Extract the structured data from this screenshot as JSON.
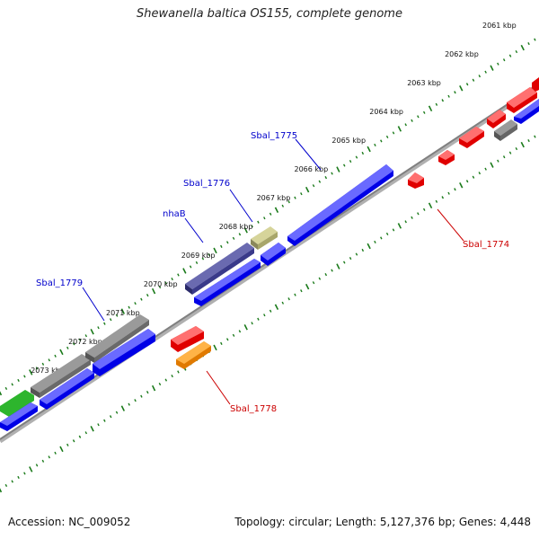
{
  "title": "Shewanella baltica OS155, complete genome",
  "footer": {
    "accession": "Accession: NC_009052",
    "summary": "Topology: circular; Length: 5,127,376 bp; Genes: 4,448"
  },
  "colors": {
    "backbone": "#808080",
    "ticks": "#1a7a1a",
    "label_forward": "#0000cc",
    "label_reverse": "#cc0000",
    "leader_forward": "#0000cc",
    "leader_reverse": "#cc0000"
  },
  "ticks": [
    {
      "kbp": 2061,
      "label": "2061 kbp"
    },
    {
      "kbp": 2062,
      "label": "2062 kbp"
    },
    {
      "kbp": 2063,
      "label": "2063 kbp"
    },
    {
      "kbp": 2064,
      "label": "2064 kbp"
    },
    {
      "kbp": 2065,
      "label": "2065 kbp"
    },
    {
      "kbp": 2066,
      "label": "2066 kbp"
    },
    {
      "kbp": 2067,
      "label": "2067 kbp"
    },
    {
      "kbp": 2068,
      "label": "2068 kbp"
    },
    {
      "kbp": 2069,
      "label": "2069 kbp"
    },
    {
      "kbp": 2070,
      "label": "2070 kbp"
    },
    {
      "kbp": 2071,
      "label": "2071 kbp"
    },
    {
      "kbp": 2072,
      "label": "2072 kbp"
    },
    {
      "kbp": 2073,
      "label": "2073 kbp"
    }
  ],
  "labels": [
    {
      "text": "Sbal_1775",
      "strand": "forward"
    },
    {
      "text": "Sbal_1776",
      "strand": "forward"
    },
    {
      "text": "nhaB",
      "strand": "forward"
    },
    {
      "text": "Sbal_1779",
      "strand": "forward"
    },
    {
      "text": "Sbal_1774",
      "strand": "reverse"
    },
    {
      "text": "Sbal_1778",
      "strand": "reverse"
    }
  ]
}
